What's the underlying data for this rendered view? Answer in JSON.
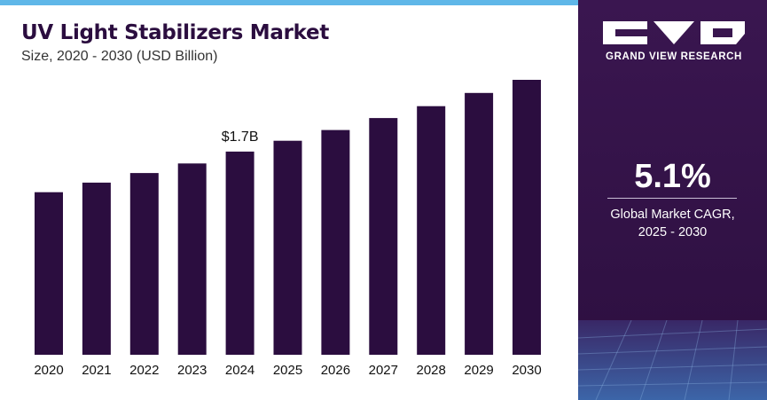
{
  "header": {
    "title": "UV Light Stabilizers Market",
    "subtitle": "Size, 2020 - 2030 (USD Billion)"
  },
  "chart_data": {
    "type": "bar",
    "title": "UV Light Stabilizers Market",
    "subtitle": "Size, 2020 - 2030 (USD Billion)",
    "categories": [
      "2020",
      "2021",
      "2022",
      "2023",
      "2024",
      "2025",
      "2026",
      "2027",
      "2028",
      "2029",
      "2030"
    ],
    "values": [
      1.36,
      1.44,
      1.52,
      1.6,
      1.7,
      1.79,
      1.88,
      1.98,
      2.08,
      2.19,
      2.3
    ],
    "annotations": [
      {
        "category": "2024",
        "text": "$1.7B"
      }
    ],
    "xlabel": "",
    "ylabel": "",
    "ylim": [
      0,
      2.3
    ],
    "grid": false,
    "colors": {
      "bar": "#2b0d3f",
      "label": "#111111"
    }
  },
  "sidebar": {
    "brand": "GRAND VIEW RESEARCH",
    "cagr_value": "5.1%",
    "cagr_label_line1": "Global Market CAGR,",
    "cagr_label_line2": "2025 - 2030",
    "colors": {
      "panel": "#2f1042",
      "accent": "#5fb7e8"
    }
  }
}
